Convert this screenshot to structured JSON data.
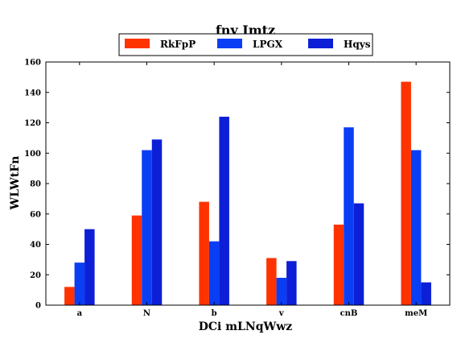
{
  "chart_data": {
    "type": "bar",
    "title": "fny Imtz",
    "xlabel": "DCi mLNqWwz",
    "ylabel": "WLWtFn",
    "categories": [
      "a",
      "N",
      "b",
      "v",
      "cnB",
      "meM"
    ],
    "series": [
      {
        "name": "RkFpP",
        "color": "#ff3300",
        "values": [
          12,
          59,
          68,
          31,
          53,
          147
        ]
      },
      {
        "name": "LPGX",
        "color": "#0a3ef5",
        "values": [
          28,
          102,
          42,
          18,
          117,
          102
        ]
      },
      {
        "name": "Hqys",
        "color": "#0d1fd6",
        "values": [
          50,
          109,
          124,
          29,
          67,
          15
        ]
      }
    ],
    "ylim": [
      0,
      160
    ],
    "yticks": [
      0,
      20,
      40,
      60,
      80,
      100,
      120,
      140,
      160
    ],
    "grid": false,
    "legend_position": "top-center"
  }
}
